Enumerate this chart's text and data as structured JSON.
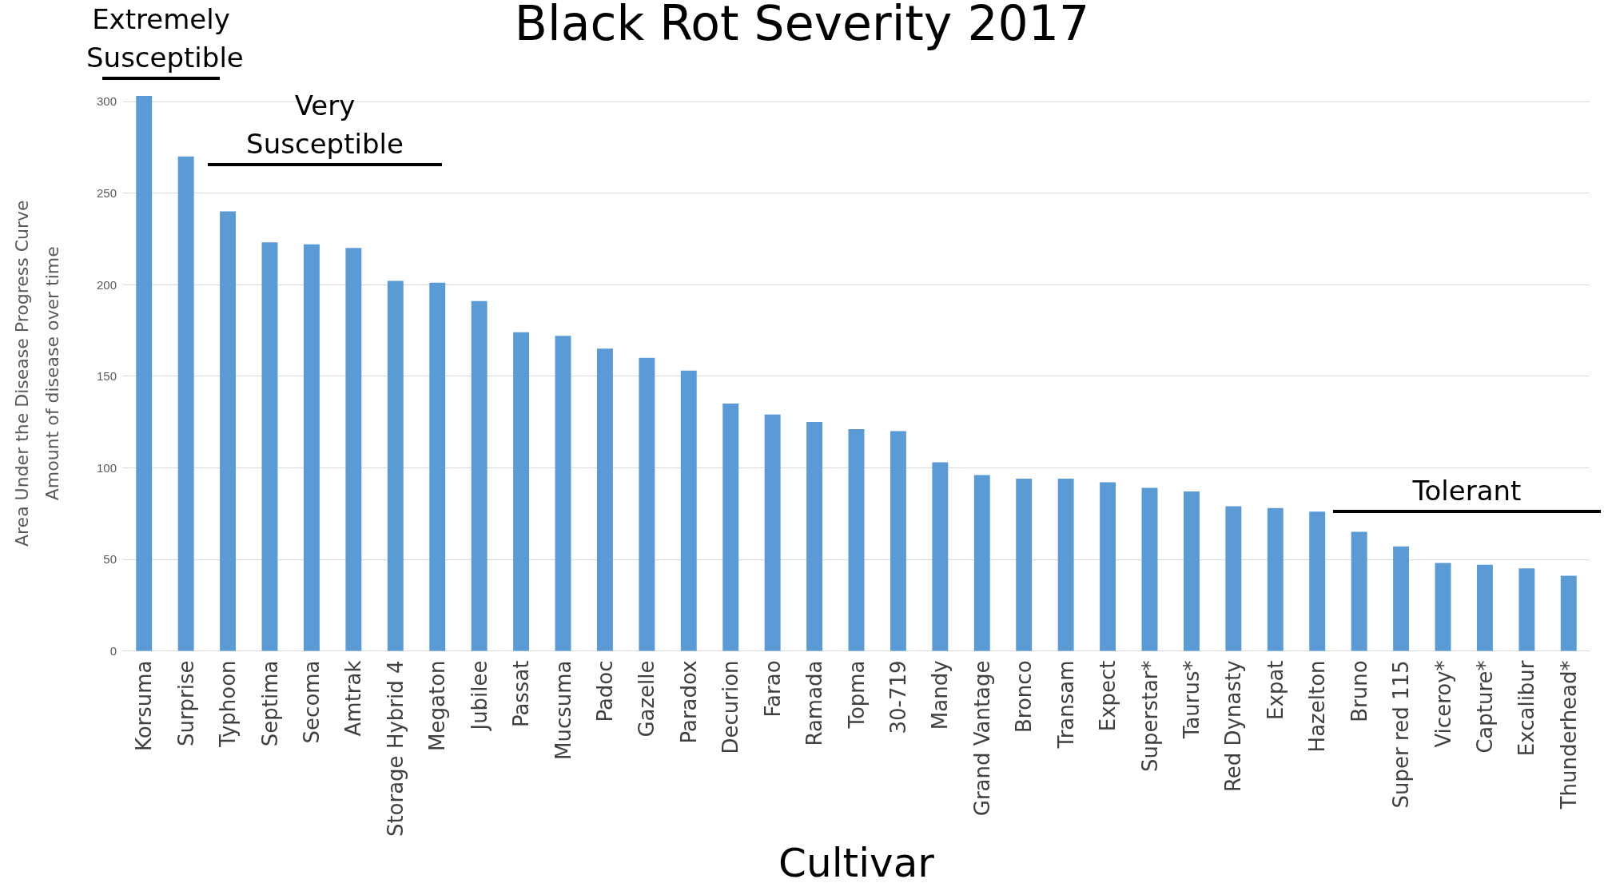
{
  "chart_data": {
    "type": "bar",
    "title": "Black Rot Severity 2017",
    "xlabel": "Cultivar",
    "ylabel": "Area Under the Disease Progress Curve\nAmount of disease over time",
    "categories": [
      "Korsuma",
      "Surprise",
      "Typhoon",
      "Septima",
      "Secoma",
      "Amtrak",
      "Storage Hybrid 4",
      "Megaton",
      "Jubilee",
      "Passat",
      "Mucsuma",
      "Padoc",
      "Gazelle",
      "Paradox",
      "Decurion",
      "Farao",
      "Ramada",
      "Topma",
      "30-719",
      "Mandy",
      "Grand Vantage",
      "Bronco",
      "Transam",
      "Expect",
      "Superstar*",
      "Taurus*",
      "Red Dynasty",
      "Expat",
      "Hazelton",
      "Bruno",
      "Super red 115",
      "Viceroy*",
      "Capture*",
      "Excalibur",
      "Thunderhead*"
    ],
    "values": [
      303,
      270,
      240,
      223,
      222,
      220,
      202,
      201,
      191,
      174,
      172,
      165,
      160,
      153,
      135,
      129,
      125,
      121,
      120,
      103,
      96,
      94,
      94,
      92,
      89,
      87,
      79,
      78,
      76,
      65,
      57,
      48,
      47,
      45,
      41
    ],
    "color": "#5b9bd5",
    "ylim": [
      0,
      303
    ],
    "yticks": [
      0,
      50,
      100,
      150,
      200,
      250,
      300
    ],
    "grid": "y",
    "annotations": [
      "Extremely Susceptible",
      "Very Susceptible",
      "Tolerant"
    ]
  }
}
